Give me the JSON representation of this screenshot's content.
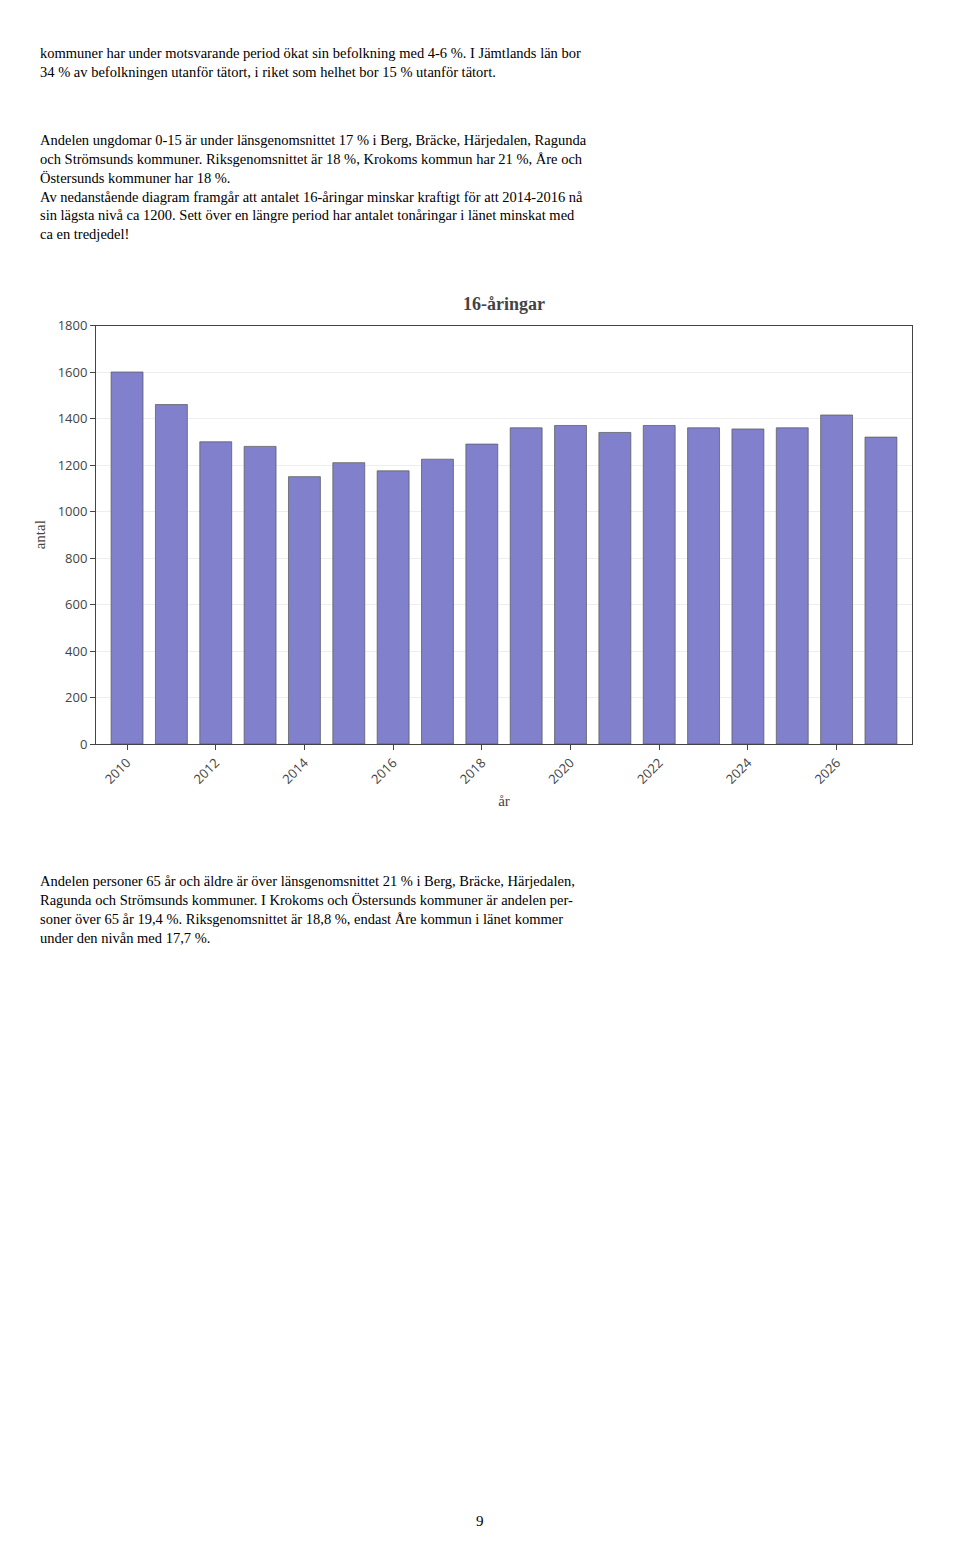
{
  "chart_data": {
    "type": "bar",
    "title": "16-åringar",
    "xlabel": "år",
    "ylabel": "antal",
    "x": [
      2010,
      2011,
      2012,
      2013,
      2014,
      2015,
      2016,
      2017,
      2018,
      2019,
      2020,
      2021,
      2022,
      2023,
      2024,
      2025,
      2026,
      2027
    ],
    "values": [
      1600,
      1460,
      1300,
      1280,
      1150,
      1210,
      1175,
      1225,
      1290,
      1360,
      1370,
      1340,
      1370,
      1360,
      1355,
      1360,
      1415,
      1320
    ],
    "color": "#8080cc",
    "xlim": [
      2009.3,
      2027.7
    ],
    "xticks": [
      2010,
      2012,
      2014,
      2016,
      2018,
      2020,
      2022,
      2024,
      2026
    ],
    "ylim": [
      0,
      1800
    ],
    "yticks": [
      0,
      200,
      400,
      600,
      800,
      1000,
      1200,
      1400,
      1600,
      1800
    ],
    "grid": true,
    "annotations": [
      "kommuner har under motsvarande period ökat sin befolkning med 4-6 %. I Jämtlands län bor\n34 % av befolkningen utanför tätort, i riket som helhet bor 15 % utanför tätort.",
      "Andelen ungdomar 0-15 är under länsgenomsnittet 17 % i Berg, Bräcke, Härjedalen, Ragunda\noch Strömsunds kommuner. Riksgenomsnittet är 18 %, Krokoms kommun har 21 %, Åre och\nÖstersunds kommuner har 18 %.\nAv nedanstående diagram framgår att antalet 16-åringar minskar kraftigt för att 2014-2016 nå\nsin lägsta nivå ca 1200. Sett över en längre period har antalet tonåringar i länet minskat med\nca en tredjedel!",
      "Andelen personer 65 år och äldre är över länsgenomsnittet 21 % i Berg, Bräcke, Härjedalen,\nRagunda och Strömsunds kommuner. I Krokoms och Östersunds kommuner är andelen per-\nsoner över 65 år 19,4 %. Riksgenomsnittet är 18,8 %, endast Åre kommun i länet kommer\nunder den nivån med 17,7 %.",
      "9"
    ]
  }
}
